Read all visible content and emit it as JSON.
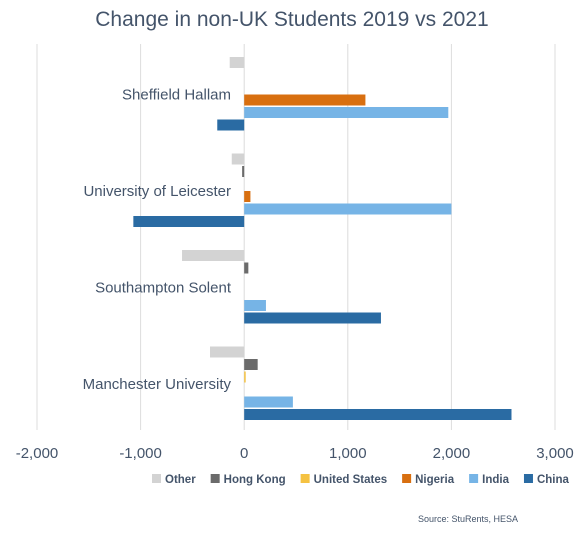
{
  "chart_data": {
    "type": "bar",
    "orientation": "horizontal",
    "title": "Change in non-UK Students 2019 vs 2021",
    "categories": [
      "Sheffield Hallam",
      "University of Leicester",
      "Southampton Solent",
      "Manchester University"
    ],
    "series": [
      {
        "name": "Other",
        "color": "#d3d3d3",
        "values": [
          -140,
          -120,
          -600,
          -330
        ]
      },
      {
        "name": "Hong Kong",
        "color": "#6b6b6b",
        "values": [
          0,
          -20,
          40,
          130
        ]
      },
      {
        "name": "United States",
        "color": "#f5c242",
        "values": [
          0,
          0,
          0,
          5
        ]
      },
      {
        "name": "Nigeria",
        "color": "#d86f10",
        "values": [
          1170,
          60,
          0,
          0
        ]
      },
      {
        "name": "India",
        "color": "#76b4e6",
        "values": [
          1970,
          2000,
          210,
          470
        ]
      },
      {
        "name": "China",
        "color": "#2a6ba3",
        "values": [
          -260,
          -1070,
          1320,
          2580
        ]
      }
    ],
    "xlim": [
      -2000,
      3000
    ],
    "xticks": [
      -2000,
      -1000,
      0,
      1000,
      2000,
      3000
    ],
    "xtick_labels": [
      "-2,000",
      "-1,000",
      "0",
      "1,000",
      "2,000",
      "3,000"
    ],
    "grid": true,
    "legend_position": "bottom",
    "source": "Source: StuRents, HESA"
  }
}
